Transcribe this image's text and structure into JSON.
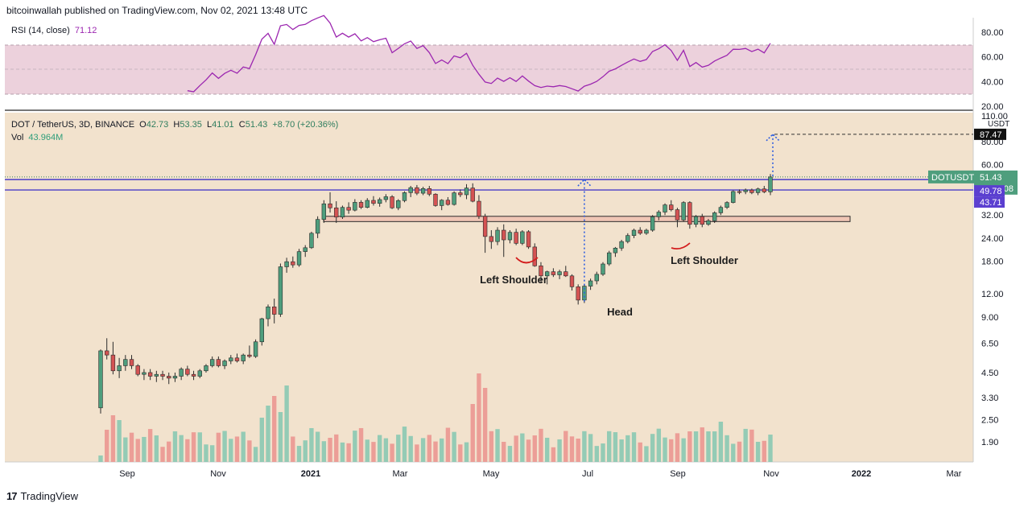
{
  "header": {
    "published": "bitcoinwallah published on TradingView.com, Nov 02, 2021 13:48 UTC"
  },
  "footer": {
    "brand": "TradingView",
    "logo_mark": "17"
  },
  "rsi": {
    "label": "RSI (14, close)",
    "value": "71.12",
    "ticks": [
      "80.00",
      "60.00",
      "40.00",
      "20.00"
    ],
    "band_upper": 70,
    "band_lower": 30,
    "line_color": "#9c27b0",
    "band_color": "#e8c9d6"
  },
  "main": {
    "symbol": "DOT / TetherUS, 3D, BINANCE",
    "o_label": "O",
    "o": "42.73",
    "h_label": "H",
    "h": "53.35",
    "l_label": "L",
    "l": "41.01",
    "c_label": "C",
    "c": "51.43",
    "change": "+8.70 (+20.36%)",
    "vol_label": "Vol",
    "vol_value": "43.964M",
    "price_ticks": [
      "110.00",
      "80.00",
      "60.00",
      "40.00",
      "32.00",
      "24.00",
      "18.00",
      "12.00",
      "9.00",
      "6.50",
      "4.50",
      "3.30",
      "2.50",
      "1.90"
    ],
    "currency": "USDT",
    "price_tag_symbol": "DOTUSDT",
    "price_tag_value": "51.43",
    "price_tag_time": "10:11:08",
    "level_upper": "49.78",
    "level_lower": "43.71",
    "target_tag": "87.47",
    "background": "#f2e2cd",
    "up_color": "#4e9e7d",
    "down_color": "#d45353",
    "line_color": "#4a3cc8"
  },
  "annotations": {
    "left_shoulder_1": "Left Shoulder",
    "head": "Head",
    "left_shoulder_2": "Left Shoulder"
  },
  "x_axis": {
    "labels": [
      "Sep",
      "Nov",
      "2021",
      "Mar",
      "May",
      "Jul",
      "Sep",
      "Nov",
      "2022",
      "Mar"
    ]
  },
  "chart_data": {
    "type": "candlestick",
    "symbol": "DOT / TetherUS",
    "interval": "3D",
    "y_scale": "log",
    "candles": [
      [
        2.9,
        6.0,
        2.7,
        5.9
      ],
      [
        5.9,
        6.9,
        5.3,
        5.6
      ],
      [
        5.6,
        6.6,
        4.4,
        4.6
      ],
      [
        4.6,
        5.4,
        4.2,
        4.9
      ],
      [
        4.9,
        5.6,
        4.6,
        5.3
      ],
      [
        5.3,
        5.6,
        4.7,
        4.9
      ],
      [
        4.9,
        5.0,
        4.3,
        4.4
      ],
      [
        4.4,
        4.7,
        4.1,
        4.5
      ],
      [
        4.5,
        4.7,
        4.1,
        4.3
      ],
      [
        4.3,
        4.6,
        4.0,
        4.4
      ],
      [
        4.4,
        4.6,
        4.1,
        4.3
      ],
      [
        4.3,
        4.5,
        3.9,
        4.2
      ],
      [
        4.2,
        4.5,
        4.0,
        4.3
      ],
      [
        4.3,
        4.8,
        4.1,
        4.7
      ],
      [
        4.7,
        4.9,
        4.3,
        4.4
      ],
      [
        4.4,
        4.6,
        4.1,
        4.3
      ],
      [
        4.3,
        4.7,
        4.2,
        4.6
      ],
      [
        4.6,
        5.0,
        4.5,
        4.9
      ],
      [
        4.9,
        5.5,
        4.8,
        5.3
      ],
      [
        5.3,
        5.5,
        4.8,
        4.9
      ],
      [
        4.9,
        5.3,
        4.7,
        5.2
      ],
      [
        5.2,
        5.6,
        5.0,
        5.4
      ],
      [
        5.4,
        5.7,
        5.1,
        5.2
      ],
      [
        5.2,
        5.7,
        5.0,
        5.6
      ],
      [
        5.6,
        6.3,
        5.4,
        5.5
      ],
      [
        5.5,
        6.8,
        5.4,
        6.6
      ],
      [
        6.6,
        8.9,
        6.3,
        8.8
      ],
      [
        8.8,
        10.5,
        8.0,
        10.2
      ],
      [
        10.2,
        11.3,
        8.3,
        9.3
      ],
      [
        9.3,
        17.5,
        9.0,
        16.8
      ],
      [
        16.8,
        18.8,
        15.6,
        17.9
      ],
      [
        17.9,
        19.1,
        16.6,
        17.2
      ],
      [
        17.2,
        21.0,
        16.8,
        20.3
      ],
      [
        20.3,
        22.0,
        19.0,
        21.3
      ],
      [
        21.3,
        26.0,
        21.0,
        25.5
      ],
      [
        25.5,
        31.5,
        24.0,
        30.3
      ],
      [
        30.3,
        38.5,
        29.0,
        36.8
      ],
      [
        36.8,
        42.5,
        33.0,
        35.0
      ],
      [
        35.0,
        38.0,
        29.0,
        31.2
      ],
      [
        31.2,
        36.0,
        30.5,
        35.2
      ],
      [
        35.2,
        37.5,
        32.5,
        34.0
      ],
      [
        34.0,
        39.0,
        33.5,
        37.5
      ],
      [
        37.5,
        38.5,
        34.5,
        35.2
      ],
      [
        35.2,
        39.5,
        34.8,
        38.4
      ],
      [
        38.4,
        40.5,
        36.0,
        37.0
      ],
      [
        37.0,
        39.8,
        35.5,
        38.8
      ],
      [
        38.8,
        41.5,
        37.5,
        40.2
      ],
      [
        40.2,
        41.0,
        34.5,
        35.0
      ],
      [
        35.0,
        39.0,
        34.0,
        38.3
      ],
      [
        38.3,
        43.0,
        37.5,
        42.3
      ],
      [
        42.3,
        46.0,
        40.0,
        45.0
      ],
      [
        45.0,
        46.5,
        41.0,
        42.0
      ],
      [
        42.0,
        45.5,
        41.0,
        44.5
      ],
      [
        44.5,
        46.0,
        40.5,
        41.5
      ],
      [
        41.5,
        42.0,
        35.5,
        36.0
      ],
      [
        36.0,
        39.0,
        34.0,
        38.5
      ],
      [
        38.5,
        40.0,
        36.0,
        36.5
      ],
      [
        36.5,
        43.0,
        36.0,
        42.2
      ],
      [
        42.2,
        44.0,
        40.0,
        41.2
      ],
      [
        41.2,
        47.0,
        39.0,
        44.8
      ],
      [
        44.8,
        47.5,
        37.5,
        38.0
      ],
      [
        38.0,
        41.0,
        30.5,
        31.5
      ],
      [
        31.5,
        32.5,
        20.0,
        24.5
      ],
      [
        24.5,
        26.5,
        21.0,
        23.0
      ],
      [
        23.0,
        27.5,
        22.0,
        26.5
      ],
      [
        26.5,
        28.5,
        19.0,
        23.5
      ],
      [
        23.5,
        26.5,
        22.5,
        25.8
      ],
      [
        25.8,
        27.0,
        22.0,
        22.5
      ],
      [
        22.5,
        26.5,
        22.0,
        26.0
      ],
      [
        26.0,
        26.5,
        21.0,
        21.5
      ],
      [
        21.5,
        22.5,
        16.8,
        17.0
      ],
      [
        17.0,
        17.8,
        13.8,
        15.0
      ],
      [
        15.0,
        16.0,
        13.5,
        15.8
      ],
      [
        15.8,
        16.5,
        14.8,
        15.2
      ],
      [
        15.2,
        16.2,
        14.4,
        15.8
      ],
      [
        15.8,
        17.0,
        14.8,
        15.0
      ],
      [
        15.0,
        15.3,
        12.5,
        13.1
      ],
      [
        13.1,
        13.5,
        10.5,
        11.1
      ],
      [
        11.1,
        13.5,
        10.7,
        13.2
      ],
      [
        13.2,
        14.5,
        12.6,
        14.1
      ],
      [
        14.1,
        15.8,
        13.5,
        15.3
      ],
      [
        15.3,
        17.8,
        15.0,
        17.4
      ],
      [
        17.4,
        20.5,
        17.0,
        20.0
      ],
      [
        20.0,
        21.5,
        19.0,
        21.2
      ],
      [
        21.2,
        23.5,
        20.5,
        23.0
      ],
      [
        23.0,
        25.5,
        22.5,
        24.8
      ],
      [
        24.8,
        27.0,
        24.0,
        26.5
      ],
      [
        26.5,
        27.5,
        25.0,
        25.5
      ],
      [
        25.5,
        27.0,
        25.0,
        26.5
      ],
      [
        26.5,
        32.0,
        26.0,
        31.3
      ],
      [
        31.3,
        34.0,
        30.0,
        33.2
      ],
      [
        33.2,
        37.0,
        32.0,
        36.3
      ],
      [
        36.3,
        38.5,
        33.5,
        34.2
      ],
      [
        34.2,
        35.0,
        27.5,
        30.1
      ],
      [
        30.1,
        38.0,
        29.5,
        37.4
      ],
      [
        37.4,
        38.0,
        27.0,
        28.5
      ],
      [
        28.5,
        32.0,
        27.5,
        31.4
      ],
      [
        31.4,
        32.5,
        27.5,
        28.5
      ],
      [
        28.5,
        30.5,
        28.0,
        29.8
      ],
      [
        29.8,
        33.5,
        29.0,
        32.9
      ],
      [
        32.9,
        36.0,
        32.0,
        35.2
      ],
      [
        35.2,
        38.0,
        34.5,
        37.4
      ],
      [
        37.4,
        43.5,
        37.0,
        42.9
      ],
      [
        42.9,
        44.0,
        41.5,
        42.8
      ],
      [
        42.8,
        44.5,
        41.5,
        43.7
      ],
      [
        43.7,
        44.5,
        41.5,
        42.3
      ],
      [
        42.3,
        45.0,
        41.0,
        44.3
      ],
      [
        44.3,
        46.0,
        42.0,
        42.7
      ],
      [
        42.7,
        53.35,
        41.01,
        51.43
      ]
    ],
    "volume_profile": "dense early spike ~2021-05 and ~2021-10",
    "horizontal_levels": [
      49.78,
      43.71
    ],
    "support_zone": [
      29.5,
      31.5
    ],
    "target": 87.47,
    "rsi_ylim": [
      20,
      80
    ]
  }
}
